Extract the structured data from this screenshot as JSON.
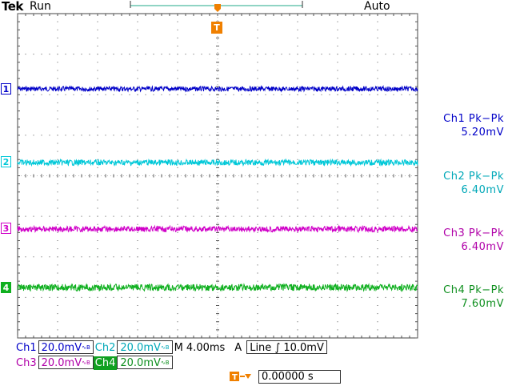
{
  "header": {
    "logo": "Tek",
    "run_state": "Run",
    "acquisition_mode": "Auto",
    "trigger_marker": "T"
  },
  "colors": {
    "ch1": "#0000c8",
    "ch2": "#00d8e8",
    "ch3": "#e800e0",
    "ch4": "#10c020",
    "trigger": "#f08000",
    "grid": "#555555"
  },
  "channels": [
    {
      "id": "1",
      "marker": "1",
      "meas_label": "Ch1 Pk−Pk",
      "meas_value": "5.20mV",
      "color": "#0000c8"
    },
    {
      "id": "2",
      "marker": "2",
      "meas_label": "Ch2 Pk−Pk",
      "meas_value": "6.40mV",
      "color": "#00c8d8"
    },
    {
      "id": "3",
      "marker": "3",
      "meas_label": "Ch3 Pk−Pk",
      "meas_value": "6.40mV",
      "color": "#d000c8"
    },
    {
      "id": "4",
      "marker": "4",
      "meas_label": "Ch4 Pk−Pk",
      "meas_value": "7.60mV",
      "color": "#10b020"
    }
  ],
  "status": {
    "ch1_label": "Ch1",
    "ch1_scale": "20.0mV",
    "ch2_label": "Ch2",
    "ch2_scale": "20.0mV",
    "ch3_label": "Ch3",
    "ch3_scale": "20.0mV",
    "ch4_label": "Ch4",
    "ch4_scale": "20.0mV",
    "bw_limit_symbol": "∿B",
    "timebase": "M 4.00ms",
    "trigger_source": "A",
    "trigger_type": "Line",
    "trigger_slope": "∫",
    "trigger_level": "10.0mV",
    "trigger_position": "0.00000 s",
    "trigger_position_icon": "T→"
  }
}
